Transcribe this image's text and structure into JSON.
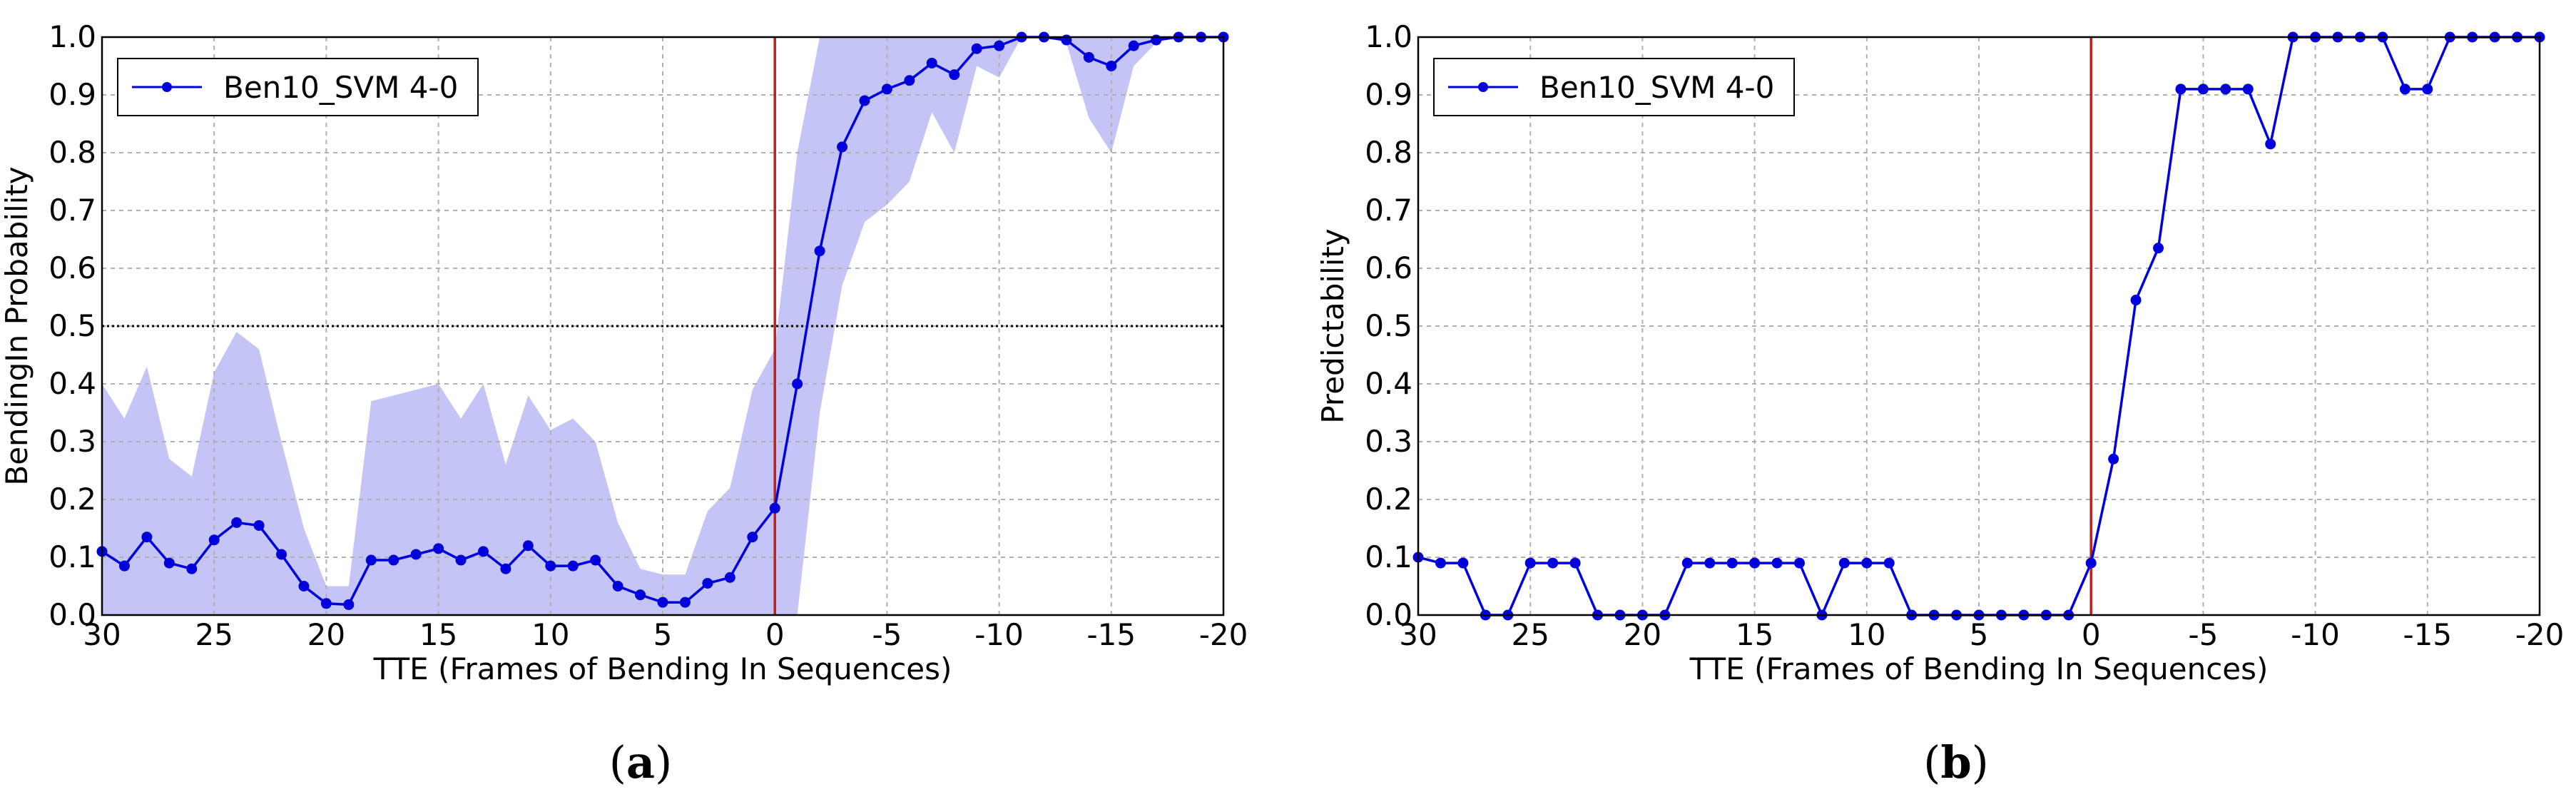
{
  "chart_data": [
    {
      "type": "line",
      "panel": "(a)",
      "caption_letter": "a",
      "xlabel": "TTE (Frames of Bending In Sequences)",
      "ylabel": "BendingIn Probability",
      "xlim": [
        30,
        -20
      ],
      "ylim": [
        0,
        1
      ],
      "x_ticks": [
        30,
        25,
        20,
        15,
        10,
        5,
        0,
        -5,
        -10,
        -15,
        -20
      ],
      "x_tick_labels": [
        "30",
        "25",
        "20",
        "15",
        "10",
        "5",
        "0",
        "-5",
        "-10",
        "-15",
        "-20"
      ],
      "y_ticks": [
        0,
        0.1,
        0.2,
        0.3,
        0.4,
        0.5,
        0.6,
        0.7,
        0.8,
        0.9,
        1.0
      ],
      "y_tick_labels": [
        "0.0",
        "0.1",
        "0.2",
        "0.3",
        "0.4",
        "0.5",
        "0.6",
        "0.7",
        "0.8",
        "0.9",
        "1.0"
      ],
      "grid": true,
      "legend_position": "top-left",
      "vertical_line_x": 0,
      "horizontal_threshold_y": 0.5,
      "colors": {
        "series": "#0000dd",
        "band": "#c4c4f6",
        "vline": "#c02020",
        "threshold": "#000000"
      },
      "series": [
        {
          "name": "Ben10_SVM 4-0",
          "x": [
            30,
            29,
            28,
            27,
            26,
            25,
            24,
            23,
            22,
            21,
            20,
            19,
            18,
            17,
            16,
            15,
            14,
            13,
            12,
            11,
            10,
            9,
            8,
            7,
            6,
            5,
            4,
            3,
            2,
            1,
            0,
            -1,
            -2,
            -3,
            -4,
            -5,
            -6,
            -7,
            -8,
            -9,
            -10,
            -11,
            -12,
            -13,
            -14,
            -15,
            -16,
            -17,
            -18,
            -19,
            -20
          ],
          "y": [
            0.11,
            0.085,
            0.135,
            0.09,
            0.08,
            0.13,
            0.16,
            0.155,
            0.105,
            0.05,
            0.02,
            0.018,
            0.095,
            0.095,
            0.105,
            0.115,
            0.095,
            0.11,
            0.08,
            0.12,
            0.085,
            0.085,
            0.095,
            0.05,
            0.035,
            0.022,
            0.022,
            0.055,
            0.065,
            0.135,
            0.185,
            0.4,
            0.63,
            0.81,
            0.89,
            0.91,
            0.925,
            0.955,
            0.935,
            0.98,
            0.985,
            1.0,
            1.0,
            0.995,
            0.965,
            0.95,
            0.985,
            0.995,
            1.0,
            1.0,
            1.0
          ],
          "upper": [
            0.4,
            0.34,
            0.43,
            0.27,
            0.24,
            0.42,
            0.49,
            0.46,
            0.3,
            0.15,
            0.05,
            0.05,
            0.37,
            0.38,
            0.39,
            0.4,
            0.34,
            0.4,
            0.26,
            0.38,
            0.32,
            0.34,
            0.3,
            0.16,
            0.08,
            0.07,
            0.07,
            0.18,
            0.22,
            0.39,
            0.46,
            0.8,
            1.0,
            1.0,
            1.0,
            1.0,
            1.0,
            1.0,
            1.0,
            1.0,
            1.0,
            1.0,
            1.0,
            1.0,
            1.0,
            1.0,
            1.0,
            1.0,
            1.0,
            1.0,
            1.0
          ],
          "lower": [
            0.0,
            0.0,
            0.0,
            0.0,
            0.0,
            0.0,
            0.0,
            0.0,
            0.0,
            0.0,
            0.0,
            0.0,
            0.0,
            0.0,
            0.0,
            0.0,
            0.0,
            0.0,
            0.0,
            0.0,
            0.0,
            0.0,
            0.0,
            0.0,
            0.0,
            0.0,
            0.0,
            0.0,
            0.0,
            0.0,
            0.0,
            0.0,
            0.35,
            0.57,
            0.68,
            0.71,
            0.75,
            0.87,
            0.8,
            0.95,
            0.93,
            1.0,
            1.0,
            0.99,
            0.86,
            0.8,
            0.95,
            0.99,
            1.0,
            1.0,
            1.0
          ]
        }
      ]
    },
    {
      "type": "line",
      "panel": "(b)",
      "caption_letter": "b",
      "xlabel": "TTE (Frames of Bending In Sequences)",
      "ylabel": "Predictability",
      "xlim": [
        30,
        -20
      ],
      "ylim": [
        0,
        1
      ],
      "x_ticks": [
        30,
        25,
        20,
        15,
        10,
        5,
        0,
        -5,
        -10,
        -15,
        -20
      ],
      "x_tick_labels": [
        "30",
        "25",
        "20",
        "15",
        "10",
        "5",
        "0",
        "-5",
        "-10",
        "-15",
        "-20"
      ],
      "y_ticks": [
        0,
        0.1,
        0.2,
        0.3,
        0.4,
        0.5,
        0.6,
        0.7,
        0.8,
        0.9,
        1.0
      ],
      "y_tick_labels": [
        "0.0",
        "0.1",
        "0.2",
        "0.3",
        "0.4",
        "0.5",
        "0.6",
        "0.7",
        "0.8",
        "0.9",
        "1.0"
      ],
      "grid": true,
      "legend_position": "top-left",
      "vertical_line_x": 0,
      "colors": {
        "series": "#0000dd",
        "vline": "#c02020"
      },
      "series": [
        {
          "name": "Ben10_SVM 4-0",
          "x": [
            30,
            29,
            28,
            27,
            26,
            25,
            24,
            23,
            22,
            21,
            20,
            19,
            18,
            17,
            16,
            15,
            14,
            13,
            12,
            11,
            10,
            9,
            8,
            7,
            6,
            5,
            4,
            3,
            2,
            1,
            0,
            -1,
            -2,
            -3,
            -4,
            -5,
            -6,
            -7,
            -8,
            -9,
            -10,
            -11,
            -12,
            -13,
            -14,
            -15,
            -16,
            -17,
            -18,
            -19,
            -20
          ],
          "y": [
            0.1,
            0.09,
            0.09,
            0.0,
            0.0,
            0.09,
            0.09,
            0.09,
            0.0,
            0.0,
            0.0,
            0.0,
            0.09,
            0.09,
            0.09,
            0.09,
            0.09,
            0.09,
            0.0,
            0.09,
            0.09,
            0.09,
            0.0,
            0.0,
            0.0,
            0.0,
            0.0,
            0.0,
            0.0,
            0.0,
            0.09,
            0.27,
            0.545,
            0.635,
            0.91,
            0.91,
            0.91,
            0.91,
            0.815,
            1.0,
            1.0,
            1.0,
            1.0,
            1.0,
            0.91,
            0.91,
            1.0,
            1.0,
            1.0,
            1.0,
            1.0
          ]
        }
      ]
    }
  ]
}
